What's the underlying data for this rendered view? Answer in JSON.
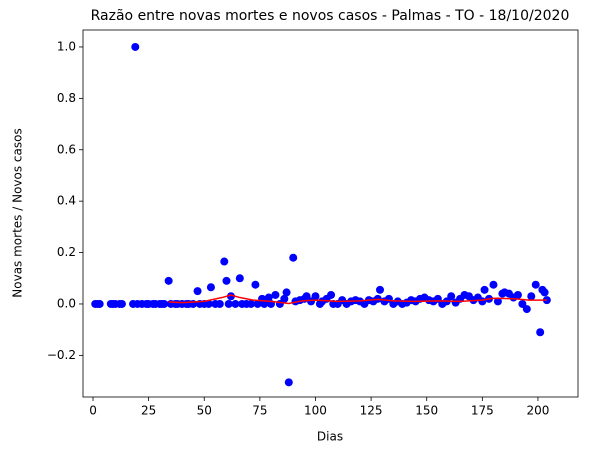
{
  "chart_data": {
    "type": "scatter",
    "title": "Razão entre novas mortes e novos casos - Palmas - TO - 18/10/2020",
    "xlabel": "Dias",
    "ylabel": "Novas mortes / Novos casos",
    "color": "#0000ff",
    "x": [
      1,
      2,
      3,
      8,
      9,
      10,
      12,
      13,
      18,
      19,
      20,
      22,
      24,
      25,
      27,
      28,
      30,
      31,
      32,
      34,
      35,
      37,
      38,
      40,
      42,
      43,
      45,
      47,
      48,
      50,
      52,
      53,
      55,
      57,
      59,
      60,
      61,
      62,
      64,
      66,
      67,
      69,
      71,
      73,
      74,
      76,
      77,
      79,
      80,
      82,
      84,
      86,
      87,
      88,
      90,
      91,
      93,
      95,
      96,
      98,
      100,
      102,
      103,
      105,
      107,
      108,
      110,
      112,
      114,
      116,
      118,
      120,
      122,
      124,
      126,
      128,
      129,
      131,
      133,
      135,
      137,
      139,
      141,
      143,
      145,
      147,
      149,
      151,
      153,
      155,
      157,
      159,
      161,
      163,
      165,
      167,
      169,
      171,
      173,
      175,
      176,
      178,
      180,
      182,
      184,
      185,
      187,
      189,
      191,
      193,
      195,
      197,
      199,
      201,
      202,
      203,
      204
    ],
    "values": [
      0,
      0,
      0,
      0,
      0,
      0,
      0,
      0,
      0,
      1.0,
      0,
      0,
      0,
      0,
      0,
      0,
      0,
      0,
      0,
      0.09,
      0,
      0,
      0,
      0,
      0,
      0,
      0,
      0.05,
      0,
      0,
      0,
      0.065,
      0,
      0,
      0.165,
      0.09,
      0,
      0.03,
      0,
      0.1,
      0,
      0,
      0,
      0.075,
      0,
      0.02,
      0,
      0.025,
      0,
      0.035,
      0,
      0.02,
      0.045,
      -0.305,
      0.18,
      0.01,
      0.015,
      0.02,
      0.03,
      0.01,
      0.03,
      0,
      0.01,
      0.02,
      0.035,
      0,
      0,
      0.015,
      0,
      0.01,
      0.015,
      0.01,
      0,
      0.015,
      0.01,
      0.02,
      0.055,
      0.01,
      0.02,
      0,
      0.01,
      0,
      0.005,
      0.015,
      0.01,
      0.02,
      0.025,
      0.015,
      0.01,
      0.02,
      0,
      0.01,
      0.03,
      0.005,
      0.02,
      0.035,
      0.03,
      0.015,
      0.025,
      0.01,
      0.055,
      0.02,
      0.075,
      0.01,
      0.04,
      0.045,
      0.04,
      0.025,
      0.035,
      0,
      -0.02,
      0.03,
      0.075,
      -0.11,
      0.055,
      0.045,
      0.015
    ],
    "line": {
      "color": "#ff0000",
      "x": [
        34,
        40,
        50,
        58,
        62,
        66,
        72,
        80,
        88,
        94,
        100,
        110,
        120,
        128,
        135,
        145,
        155,
        165,
        175,
        180,
        190,
        196,
        204
      ],
      "values": [
        0.008,
        0.005,
        0.01,
        0.025,
        0.035,
        0.025,
        0.015,
        0.01,
        0.002,
        0.012,
        0.015,
        0.01,
        0.012,
        0.018,
        0.012,
        0.01,
        0.012,
        0.01,
        0.015,
        0.022,
        0.02,
        0.015,
        0.015
      ]
    },
    "xlim": [
      -4.5,
      218
    ],
    "xticks": [
      0,
      25,
      50,
      75,
      100,
      125,
      150,
      175,
      200
    ],
    "ylim": [
      -0.362,
      1.066
    ],
    "yticks": [
      {
        "value": -0.2,
        "label": "−0.2"
      },
      {
        "value": 0,
        "label": "0.0"
      },
      {
        "value": 0.2,
        "label": "0.2"
      },
      {
        "value": 0.4,
        "label": "0.4"
      },
      {
        "value": 0.6,
        "label": "0.6"
      },
      {
        "value": 0.8,
        "label": "0.8"
      },
      {
        "value": 1.0,
        "label": "1.0"
      }
    ]
  }
}
